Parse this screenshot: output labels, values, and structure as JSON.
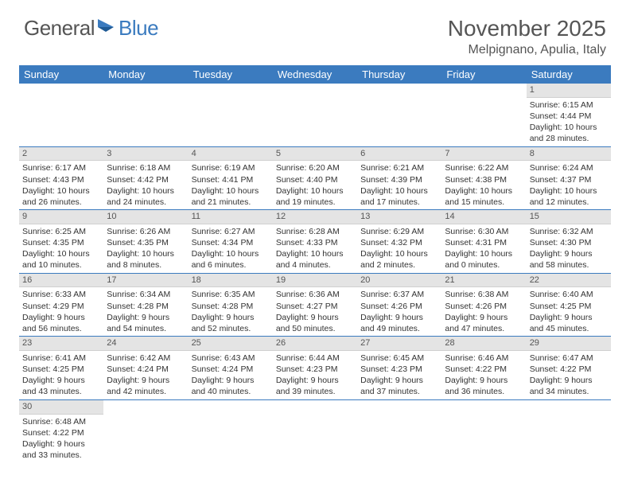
{
  "logo": {
    "text1": "General",
    "text2": "Blue"
  },
  "title": "November 2025",
  "location": "Melpignano, Apulia, Italy",
  "colors": {
    "header_bg": "#3b7bbf",
    "header_text": "#ffffff",
    "daynum_bg": "#e4e4e4",
    "row_border": "#3b7bbf",
    "body_text": "#333333",
    "title_text": "#555555"
  },
  "day_headers": [
    "Sunday",
    "Monday",
    "Tuesday",
    "Wednesday",
    "Thursday",
    "Friday",
    "Saturday"
  ],
  "weeks": [
    [
      null,
      null,
      null,
      null,
      null,
      null,
      {
        "n": "1",
        "sunrise": "6:15 AM",
        "sunset": "4:44 PM",
        "daylight": "10 hours and 28 minutes."
      }
    ],
    [
      {
        "n": "2",
        "sunrise": "6:17 AM",
        "sunset": "4:43 PM",
        "daylight": "10 hours and 26 minutes."
      },
      {
        "n": "3",
        "sunrise": "6:18 AM",
        "sunset": "4:42 PM",
        "daylight": "10 hours and 24 minutes."
      },
      {
        "n": "4",
        "sunrise": "6:19 AM",
        "sunset": "4:41 PM",
        "daylight": "10 hours and 21 minutes."
      },
      {
        "n": "5",
        "sunrise": "6:20 AM",
        "sunset": "4:40 PM",
        "daylight": "10 hours and 19 minutes."
      },
      {
        "n": "6",
        "sunrise": "6:21 AM",
        "sunset": "4:39 PM",
        "daylight": "10 hours and 17 minutes."
      },
      {
        "n": "7",
        "sunrise": "6:22 AM",
        "sunset": "4:38 PM",
        "daylight": "10 hours and 15 minutes."
      },
      {
        "n": "8",
        "sunrise": "6:24 AM",
        "sunset": "4:37 PM",
        "daylight": "10 hours and 12 minutes."
      }
    ],
    [
      {
        "n": "9",
        "sunrise": "6:25 AM",
        "sunset": "4:35 PM",
        "daylight": "10 hours and 10 minutes."
      },
      {
        "n": "10",
        "sunrise": "6:26 AM",
        "sunset": "4:35 PM",
        "daylight": "10 hours and 8 minutes."
      },
      {
        "n": "11",
        "sunrise": "6:27 AM",
        "sunset": "4:34 PM",
        "daylight": "10 hours and 6 minutes."
      },
      {
        "n": "12",
        "sunrise": "6:28 AM",
        "sunset": "4:33 PM",
        "daylight": "10 hours and 4 minutes."
      },
      {
        "n": "13",
        "sunrise": "6:29 AM",
        "sunset": "4:32 PM",
        "daylight": "10 hours and 2 minutes."
      },
      {
        "n": "14",
        "sunrise": "6:30 AM",
        "sunset": "4:31 PM",
        "daylight": "10 hours and 0 minutes."
      },
      {
        "n": "15",
        "sunrise": "6:32 AM",
        "sunset": "4:30 PM",
        "daylight": "9 hours and 58 minutes."
      }
    ],
    [
      {
        "n": "16",
        "sunrise": "6:33 AM",
        "sunset": "4:29 PM",
        "daylight": "9 hours and 56 minutes."
      },
      {
        "n": "17",
        "sunrise": "6:34 AM",
        "sunset": "4:28 PM",
        "daylight": "9 hours and 54 minutes."
      },
      {
        "n": "18",
        "sunrise": "6:35 AM",
        "sunset": "4:28 PM",
        "daylight": "9 hours and 52 minutes."
      },
      {
        "n": "19",
        "sunrise": "6:36 AM",
        "sunset": "4:27 PM",
        "daylight": "9 hours and 50 minutes."
      },
      {
        "n": "20",
        "sunrise": "6:37 AM",
        "sunset": "4:26 PM",
        "daylight": "9 hours and 49 minutes."
      },
      {
        "n": "21",
        "sunrise": "6:38 AM",
        "sunset": "4:26 PM",
        "daylight": "9 hours and 47 minutes."
      },
      {
        "n": "22",
        "sunrise": "6:40 AM",
        "sunset": "4:25 PM",
        "daylight": "9 hours and 45 minutes."
      }
    ],
    [
      {
        "n": "23",
        "sunrise": "6:41 AM",
        "sunset": "4:25 PM",
        "daylight": "9 hours and 43 minutes."
      },
      {
        "n": "24",
        "sunrise": "6:42 AM",
        "sunset": "4:24 PM",
        "daylight": "9 hours and 42 minutes."
      },
      {
        "n": "25",
        "sunrise": "6:43 AM",
        "sunset": "4:24 PM",
        "daylight": "9 hours and 40 minutes."
      },
      {
        "n": "26",
        "sunrise": "6:44 AM",
        "sunset": "4:23 PM",
        "daylight": "9 hours and 39 minutes."
      },
      {
        "n": "27",
        "sunrise": "6:45 AM",
        "sunset": "4:23 PM",
        "daylight": "9 hours and 37 minutes."
      },
      {
        "n": "28",
        "sunrise": "6:46 AM",
        "sunset": "4:22 PM",
        "daylight": "9 hours and 36 minutes."
      },
      {
        "n": "29",
        "sunrise": "6:47 AM",
        "sunset": "4:22 PM",
        "daylight": "9 hours and 34 minutes."
      }
    ],
    [
      {
        "n": "30",
        "sunrise": "6:48 AM",
        "sunset": "4:22 PM",
        "daylight": "9 hours and 33 minutes."
      },
      null,
      null,
      null,
      null,
      null,
      null
    ]
  ],
  "labels": {
    "sunrise": "Sunrise: ",
    "sunset": "Sunset: ",
    "daylight": "Daylight: "
  }
}
